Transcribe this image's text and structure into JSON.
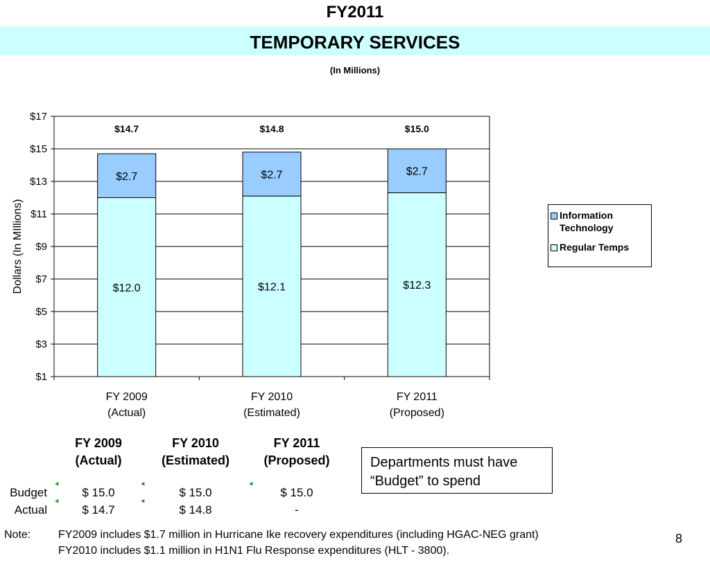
{
  "header": {
    "title": "FY2011",
    "subtitle": "TEMPORARY SERVICES",
    "units": "(In Millions)"
  },
  "colors": {
    "regular_temps": "#ccffff",
    "information_technology": "#99ccff",
    "title_band": "#ccffff",
    "budget_marker": "#1d9b1d"
  },
  "chart_data": {
    "type": "bar",
    "stacked": true,
    "categories": [
      [
        "FY 2009",
        "(Actual)"
      ],
      [
        "FY 2010",
        "(Estimated)"
      ],
      [
        "FY 2011",
        "(Proposed)"
      ]
    ],
    "series": [
      {
        "name": "Regular Temps",
        "values": [
          12.0,
          12.1,
          12.3
        ],
        "labels": [
          "$12.0",
          "$12.1",
          "$12.3"
        ]
      },
      {
        "name": "Information Technology",
        "values": [
          2.7,
          2.7,
          2.7
        ],
        "labels": [
          "$2.7",
          "$2.7",
          "$2.7"
        ]
      }
    ],
    "totals": [
      14.7,
      14.8,
      15.0
    ],
    "total_labels": [
      "$14.7",
      "$14.8",
      "$15.0"
    ],
    "ylabel": "Dollars (In MIllions)",
    "ylim": [
      1,
      17
    ],
    "yticks": [
      1,
      3,
      5,
      7,
      9,
      11,
      13,
      15,
      17
    ],
    "ytick_labels": [
      "$1",
      "$3",
      "$5",
      "$7",
      "$9",
      "$11",
      "$13",
      "$15",
      "$17"
    ],
    "grid": true,
    "legend": {
      "placement": "right",
      "items": [
        {
          "label_lines": [
            "Information",
            "Technology"
          ]
        },
        {
          "label_lines": [
            "Regular Temps"
          ]
        }
      ]
    }
  },
  "budget_table": {
    "columns": [
      {
        "line1": "FY 2009",
        "line2": "(Actual)"
      },
      {
        "line1": "FY 2010",
        "line2": "(Estimated)"
      },
      {
        "line1": "FY 2011",
        "line2": "(Proposed)"
      }
    ],
    "rows": [
      {
        "label": "Budget",
        "cells": [
          "$ 15.0",
          "$ 15.0",
          "$ 15.0"
        ]
      },
      {
        "label": "Actual",
        "cells": [
          "$ 14.7",
          "$ 14.8",
          "-"
        ]
      }
    ]
  },
  "callout": "Departments must have “Budget” to spend",
  "notes": {
    "label": "Note:",
    "lines": [
      "FY2009 includes $1.7 million in Hurricane Ike recovery expenditures (including HGAC-NEG grant)",
      "FY2010 includes $1.1 million in H1N1 Flu Response expenditures (HLT - 3800)."
    ]
  },
  "page_number": "8"
}
